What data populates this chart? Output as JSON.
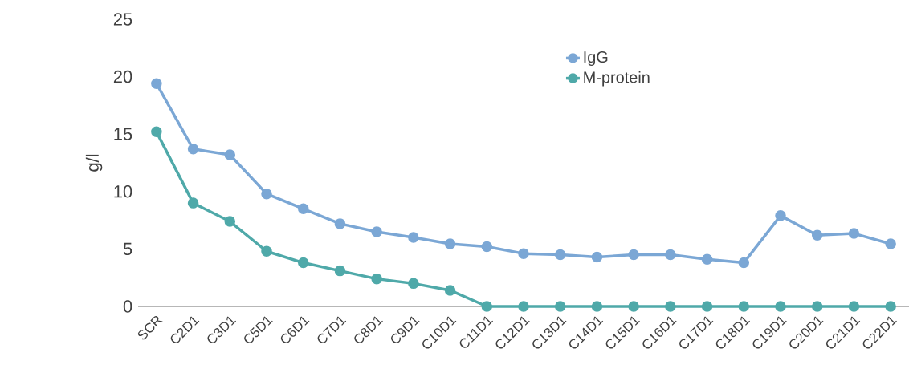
{
  "chart_data": {
    "type": "line",
    "ylabel": "g/l",
    "categories": [
      "SCR",
      "C2D1",
      "C3D1",
      "C5D1",
      "C6D1",
      "C7D1",
      "C8D1",
      "C9D1",
      "C10D1",
      "C11D1",
      "C12D1",
      "C13D1",
      "C14D1",
      "C15D1",
      "C16D1",
      "C17D1",
      "C18D1",
      "C19D1",
      "C20D1",
      "C21D1",
      "C22D1"
    ],
    "series": [
      {
        "name": "IgG",
        "color": "#7ba7d5",
        "values": [
          19.4,
          13.7,
          13.2,
          9.8,
          8.5,
          7.2,
          6.5,
          6.0,
          5.45,
          5.2,
          4.6,
          4.5,
          4.3,
          4.5,
          4.5,
          4.1,
          3.8,
          7.9,
          6.2,
          6.35,
          5.45
        ]
      },
      {
        "name": "M-protein",
        "color": "#4fa9a9",
        "values": [
          15.2,
          9.0,
          7.4,
          4.8,
          3.8,
          3.1,
          2.4,
          2.0,
          1.4,
          0,
          0,
          0,
          0,
          0,
          0,
          0,
          0,
          0,
          0,
          0,
          0
        ]
      }
    ],
    "ylim": [
      0,
      25
    ],
    "yticks": [
      0,
      5,
      10,
      15,
      20,
      25
    ],
    "legend": "top right",
    "marker": "circle",
    "line_style": "solid"
  }
}
